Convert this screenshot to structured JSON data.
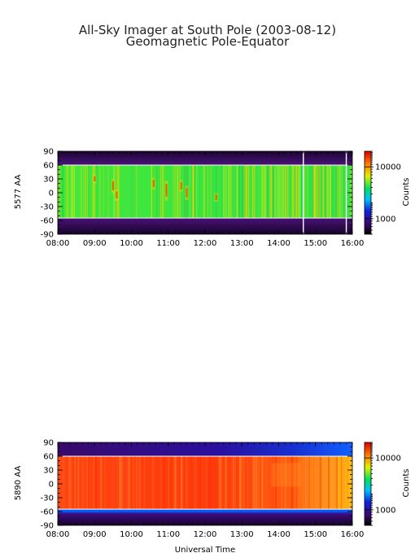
{
  "header": {
    "title": "All-Sky Imager at South Pole (2003-08-12)",
    "subtitle": "Geomagnetic Pole-Equator"
  },
  "chart_data": [
    {
      "type": "heatmap",
      "ylabel": "5577 AA",
      "colorbar_label": "Counts",
      "colorbar_ticks": [
        "10000",
        "1000"
      ],
      "colorbar_tick_values": [
        10000,
        1000
      ],
      "colorbar_range": [
        500,
        20000
      ],
      "colorbar_scale": "log",
      "xlim": [
        "08:00",
        "16:00"
      ],
      "ylim": [
        -90,
        90
      ],
      "x_ticks": [
        "08:00",
        "09:00",
        "10:00",
        "11:00",
        "12:00",
        "13:00",
        "14:00",
        "15:00",
        "16:00"
      ],
      "y_ticks": [
        "90",
        "60",
        "30",
        "0",
        "-30",
        "-60",
        "-90"
      ],
      "y_tick_values": [
        90,
        60,
        30,
        0,
        -30,
        -60,
        -90
      ],
      "field_of_view_band": [
        -55,
        60
      ],
      "typical_counts_inside_band": 5000,
      "typical_counts_outside_band": 600,
      "gap_times": [
        "14:40",
        "15:50"
      ],
      "colors": {
        "band": "#33e23c",
        "outside": "#3a0a5a",
        "bright": "#ffd400",
        "peak": "#c40000"
      }
    },
    {
      "type": "heatmap",
      "xlabel": "Universal Time",
      "ylabel": "5890 AA",
      "colorbar_label": "Counts",
      "colorbar_ticks": [
        "10000",
        "1000"
      ],
      "colorbar_tick_values": [
        10000,
        1000
      ],
      "colorbar_range": [
        500,
        20000
      ],
      "colorbar_scale": "log",
      "xlim": [
        "08:00",
        "16:00"
      ],
      "ylim": [
        -90,
        90
      ],
      "x_ticks": [
        "08:00",
        "09:00",
        "10:00",
        "11:00",
        "12:00",
        "13:00",
        "14:00",
        "15:00",
        "16:00"
      ],
      "y_ticks": [
        "90",
        "60",
        "30",
        "0",
        "-30",
        "-60",
        "-90"
      ],
      "y_tick_values": [
        90,
        60,
        30,
        0,
        -30,
        -60,
        -90
      ],
      "field_of_view_band": [
        -55,
        60
      ],
      "typical_counts_inside_band": 12000,
      "typical_counts_outside_band": 700,
      "colors": {
        "band": "#ff3a10",
        "outside": "#3a0a5a",
        "edge": "#0060ff",
        "bright": "#ffd400"
      }
    }
  ]
}
